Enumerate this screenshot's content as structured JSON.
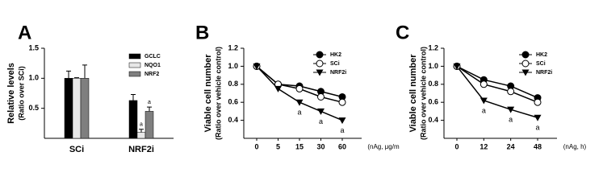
{
  "chart_data": [
    {
      "type": "bar",
      "title": "A",
      "ylabel": [
        "Relative levels",
        "(Ratio over SCi)"
      ],
      "categories": [
        "SCi",
        "NRF2i"
      ],
      "series": [
        {
          "name": "GCLC",
          "color": "#000000",
          "values": [
            1.0,
            0.63
          ],
          "errors": [
            0.12,
            0.1
          ],
          "point_labels": [
            null,
            null
          ]
        },
        {
          "name": "NQO1",
          "color": "#e8e8e8",
          "values": [
            1.0,
            0.1
          ],
          "errors": [
            0.01,
            0.05
          ],
          "point_labels": [
            null,
            "a"
          ]
        },
        {
          "name": "NRF2",
          "color": "#7f7f7f",
          "values": [
            1.0,
            0.45
          ],
          "errors": [
            0.22,
            0.07
          ],
          "point_labels": [
            null,
            "a"
          ]
        }
      ],
      "ylim": [
        0,
        1.5
      ],
      "yticks": [
        0.5,
        {
          "value": 1,
          "label": "1.0"
        },
        1.5
      ],
      "grid": false
    },
    {
      "type": "line",
      "title": "B",
      "ylabel": [
        "Viable cell number",
        "(Ratio over vehicle control)"
      ],
      "xlabel": "(nAg, μg/m",
      "categories": [
        "0",
        "5",
        "15",
        "30",
        "60"
      ],
      "series": [
        {
          "name": "HK2",
          "color": "#000000",
          "marker": "filled-circle",
          "values": [
            1.0,
            0.8,
            0.78,
            0.72,
            0.66
          ],
          "point_labels": [
            null,
            null,
            null,
            null,
            null
          ]
        },
        {
          "name": "SCi",
          "color": "#000000",
          "marker": "open-circle",
          "values": [
            1.0,
            0.8,
            0.75,
            0.66,
            0.6
          ],
          "point_labels": [
            null,
            null,
            null,
            null,
            null
          ]
        },
        {
          "name": "NRF2i",
          "color": "#000000",
          "marker": "triangle-down",
          "values": [
            1.0,
            0.75,
            0.6,
            0.5,
            0.4
          ],
          "point_labels": [
            null,
            null,
            "a",
            "a",
            "a"
          ]
        }
      ],
      "ylim": [
        0.2,
        1.2
      ],
      "yticks": [
        0.4,
        0.6,
        0.8,
        {
          "value": 1,
          "label": "1.0"
        },
        1.2
      ],
      "grid": false
    },
    {
      "type": "line",
      "title": "C",
      "ylabel": [
        "Viable cell number",
        "(Ratio over vehicle control)"
      ],
      "xlabel": "(nAg, h)",
      "categories": [
        "0",
        "12",
        "24",
        "48"
      ],
      "series": [
        {
          "name": "HK2",
          "color": "#000000",
          "marker": "filled-circle",
          "values": [
            1.0,
            0.85,
            0.78,
            0.65
          ],
          "point_labels": [
            null,
            null,
            null,
            null
          ]
        },
        {
          "name": "SCi",
          "color": "#000000",
          "marker": "open-circle",
          "values": [
            1.0,
            0.8,
            0.72,
            0.6
          ],
          "point_labels": [
            null,
            null,
            null,
            null
          ]
        },
        {
          "name": "NRF2i",
          "color": "#000000",
          "marker": "triangle-down",
          "values": [
            1.0,
            0.62,
            0.52,
            0.43
          ],
          "point_labels": [
            null,
            "a",
            "a",
            "a"
          ]
        }
      ],
      "ylim": [
        0.2,
        1.2
      ],
      "yticks": [
        0.4,
        0.6,
        0.8,
        {
          "value": 1,
          "label": "1.0"
        },
        1.2
      ],
      "grid": false
    }
  ]
}
